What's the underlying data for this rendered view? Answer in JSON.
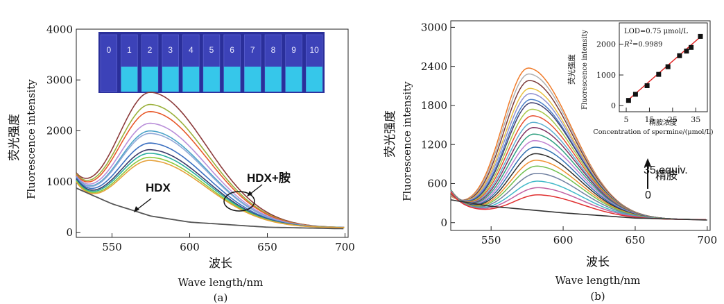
{
  "panels": [
    {
      "id": "a",
      "caption": "(a)",
      "ylabel_cn": "荧光强度",
      "ylabel_en": "Fluorescence intensity",
      "xlabel_cn": "波长",
      "xlabel_en": "Wave length/nm",
      "annotations": {
        "hdx": "HDX",
        "hdx_amine": "HDX+胺"
      },
      "photo": {
        "vial_labels": [
          "0",
          "1",
          "2",
          "3",
          "4",
          "5",
          "6",
          "7",
          "8",
          "9",
          "10"
        ],
        "bg_color": "#2a2f9a",
        "glow_color": "#35d6f0"
      }
    },
    {
      "id": "b",
      "caption": "(b)",
      "ylabel_cn": "荧光强度",
      "ylabel_en": "Fluorescence intensity",
      "xlabel_cn": "波长",
      "xlabel_en": "Wave length/nm",
      "annotations": {
        "top": "35 equiv.",
        "analyte": "精胺",
        "bottom": "0"
      },
      "inset": {
        "lod": "LOD=0.75 μmol/L",
        "r2_label": "R",
        "r2_sup": "2",
        "r2_value": "=0.9989",
        "ylabel_cn": "荧光强度",
        "ylabel_en": "Fluorescence intensity",
        "xlabel_cn": "精胺浓度",
        "xlabel_en": "Concentration of spermine/(μmol/L)"
      }
    }
  ],
  "chart_data": [
    {
      "type": "line",
      "x_range": [
        527,
        702
      ],
      "ylim": [
        -100,
        4000
      ],
      "xticks": [
        550,
        600,
        650,
        700
      ],
      "yticks": [
        0,
        1000,
        2000,
        3000,
        4000
      ],
      "grid": false,
      "legend": "none",
      "baseline": {
        "peak_x": 575,
        "tail": 90
      },
      "series": [
        {
          "color": "#8B3A3A",
          "peak": 2640,
          "left_value": 1080
        },
        {
          "color": "#9AB03A",
          "peak": 2400,
          "left_value": 1060
        },
        {
          "color": "#E8592A",
          "peak": 2260,
          "left_value": 1040
        },
        {
          "color": "#B98ED9",
          "peak": 2030,
          "left_value": 1020
        },
        {
          "color": "#4CA3C8",
          "peak": 1880,
          "left_value": 1000
        },
        {
          "color": "#8FA8D8",
          "peak": 1830,
          "left_value": 990
        },
        {
          "color": "#3A6FC0",
          "peak": 1640,
          "left_value": 980
        },
        {
          "color": "#3A3A6A",
          "peak": 1510,
          "left_value": 960
        },
        {
          "color": "#2AAE9E",
          "peak": 1440,
          "left_value": 940
        },
        {
          "color": "#8DC83A",
          "peak": 1360,
          "left_value": 920
        },
        {
          "color": "#E6A13A",
          "peak": 1300,
          "left_value": 900
        }
      ],
      "hdx_curve": {
        "color": "#555555",
        "points": [
          [
            527,
            870
          ],
          [
            550,
            560
          ],
          [
            575,
            320
          ],
          [
            600,
            200
          ],
          [
            650,
            100
          ],
          [
            700,
            70
          ]
        ]
      }
    },
    {
      "type": "line",
      "x_range": [
        522,
        702
      ],
      "ylim": [
        -120,
        3100
      ],
      "xticks": [
        550,
        600,
        650,
        700
      ],
      "yticks": [
        0,
        600,
        1200,
        1800,
        2400,
        3000
      ],
      "grid": false,
      "legend": "none",
      "series": [
        {
          "color": "#F07A28",
          "peak": 2270
        },
        {
          "color": "#B0B0B0",
          "peak": 2180
        },
        {
          "color": "#7A3A3A",
          "peak": 2080
        },
        {
          "color": "#E8C040",
          "peak": 1960
        },
        {
          "color": "#9090D0",
          "peak": 1880
        },
        {
          "color": "#4A7FC8",
          "peak": 1790
        },
        {
          "color": "#404070",
          "peak": 1740
        },
        {
          "color": "#A8C848",
          "peak": 1640
        },
        {
          "color": "#E85030",
          "peak": 1540
        },
        {
          "color": "#60B0D0",
          "peak": 1440
        },
        {
          "color": "#803060",
          "peak": 1360
        },
        {
          "color": "#30A080",
          "peak": 1260
        },
        {
          "color": "#C080D0",
          "peak": 1160
        },
        {
          "color": "#3070B0",
          "peak": 1060
        },
        {
          "color": "#303030",
          "peak": 960
        },
        {
          "color": "#F09030",
          "peak": 860
        },
        {
          "color": "#70C050",
          "peak": 770
        },
        {
          "color": "#7080A0",
          "peak": 660
        },
        {
          "color": "#40B8C8",
          "peak": 540
        },
        {
          "color": "#C060A0",
          "peak": 440
        },
        {
          "color": "#E03030",
          "peak": 330
        }
      ],
      "base_curve": {
        "color": "#333333",
        "points": [
          [
            522,
            350
          ],
          [
            550,
            250
          ],
          [
            600,
            150
          ],
          [
            650,
            70
          ],
          [
            700,
            40
          ]
        ]
      },
      "inset": {
        "type": "scatter",
        "xlim": [
          2,
          40
        ],
        "ylim": [
          -200,
          2700
        ],
        "xticks": [
          5,
          15,
          25,
          35
        ],
        "yticks": [
          0,
          1000,
          2000
        ],
        "points": [
          [
            6,
            170
          ],
          [
            9,
            370
          ],
          [
            14,
            650
          ],
          [
            19,
            1020
          ],
          [
            23,
            1270
          ],
          [
            28,
            1630
          ],
          [
            31,
            1780
          ],
          [
            33,
            1900
          ],
          [
            37,
            2260
          ]
        ],
        "fit_line": [
          [
            5,
            130
          ],
          [
            38,
            2310
          ]
        ],
        "point_color": "#111111",
        "line_color": "#E02020"
      }
    }
  ]
}
